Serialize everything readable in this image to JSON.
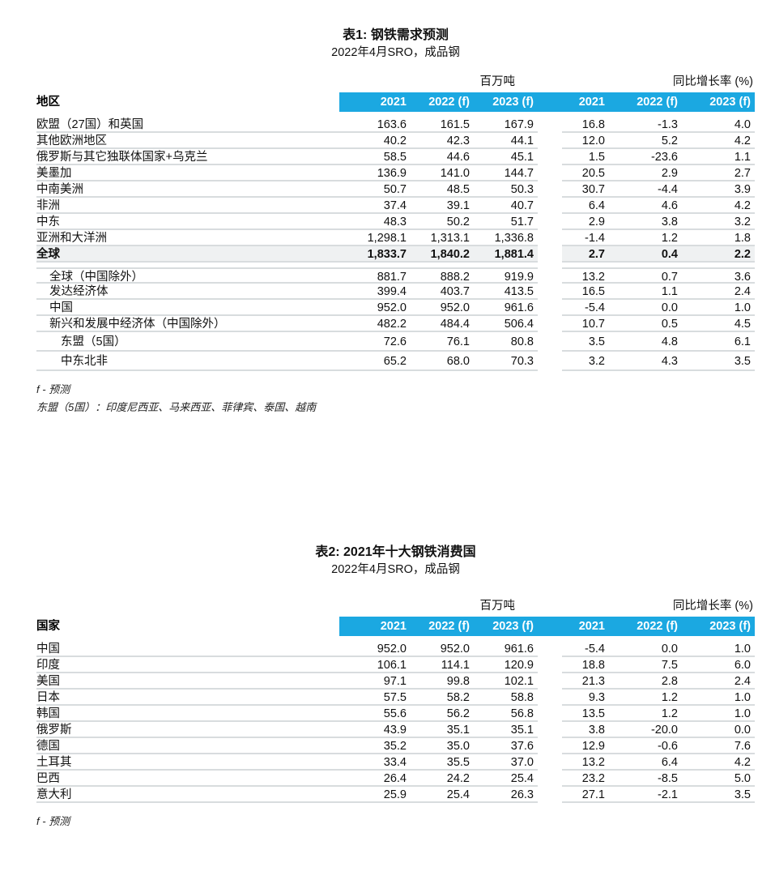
{
  "colors": {
    "header_blue": "#1BA8E1",
    "separator": "#D8DCDE",
    "row_shade": "#EFF1F2",
    "text": "#111111"
  },
  "tables": [
    {
      "title": "表1: 钢铁需求预测",
      "subtitle": "2022年4月SRO，成品钢",
      "unit_group_label": "百万吨",
      "growth_group_label": "同比增长率 (%)",
      "row_header": "地区",
      "columns": [
        "2021",
        "2022 (f)",
        "2023 (f)",
        "2021",
        "2022 (f)",
        "2023 (f)"
      ],
      "rows": [
        {
          "label": "欧盟（27国）和英国",
          "indent": 0,
          "values": [
            "163.6",
            "161.5",
            "167.9",
            "16.8",
            "-1.3",
            "4.0"
          ]
        },
        {
          "label": "其他欧洲地区",
          "indent": 0,
          "values": [
            "40.2",
            "42.3",
            "44.1",
            "12.0",
            "5.2",
            "4.2"
          ]
        },
        {
          "label": "俄罗斯与其它独联体国家+乌克兰",
          "indent": 0,
          "values": [
            "58.5",
            "44.6",
            "45.1",
            "1.5",
            "-23.6",
            "1.1"
          ]
        },
        {
          "label": "美墨加",
          "indent": 0,
          "values": [
            "136.9",
            "141.0",
            "144.7",
            "20.5",
            "2.9",
            "2.7"
          ]
        },
        {
          "label": "中南美洲",
          "indent": 0,
          "values": [
            "50.7",
            "48.5",
            "50.3",
            "30.7",
            "-4.4",
            "3.9"
          ]
        },
        {
          "label": "非洲",
          "indent": 0,
          "values": [
            "37.4",
            "39.1",
            "40.7",
            "6.4",
            "4.6",
            "4.2"
          ]
        },
        {
          "label": "中东",
          "indent": 0,
          "values": [
            "48.3",
            "50.2",
            "51.7",
            "2.9",
            "3.8",
            "3.2"
          ]
        },
        {
          "label": "亚洲和大洋洲",
          "indent": 0,
          "values": [
            "1,298.1",
            "1,313.1",
            "1,336.8",
            "-1.4",
            "1.2",
            "1.8"
          ]
        },
        {
          "label": "全球",
          "indent": 0,
          "bold": true,
          "shaded": true,
          "values": [
            "1,833.7",
            "1,840.2",
            "1,881.4",
            "2.7",
            "0.4",
            "2.2"
          ]
        },
        {
          "label": "全球（中国除外）",
          "indent": 1,
          "block_start": true,
          "values": [
            "881.7",
            "888.2",
            "919.9",
            "13.2",
            "0.7",
            "3.6"
          ]
        },
        {
          "label": "发达经济体",
          "indent": 1,
          "values": [
            "399.4",
            "403.7",
            "413.5",
            "16.5",
            "1.1",
            "2.4"
          ]
        },
        {
          "label": "中国",
          "indent": 1,
          "values": [
            "952.0",
            "952.0",
            "961.6",
            "-5.4",
            "0.0",
            "1.0"
          ]
        },
        {
          "label": "新兴和发展中经济体（中国除外）",
          "indent": 1,
          "values": [
            "482.2",
            "484.4",
            "506.4",
            "10.7",
            "0.5",
            "4.5"
          ]
        },
        {
          "label": "东盟（5国）",
          "indent": 2,
          "tall": true,
          "values": [
            "72.6",
            "76.1",
            "80.8",
            "3.5",
            "4.8",
            "6.1"
          ]
        },
        {
          "label": "中东北非",
          "indent": 2,
          "tall": true,
          "values": [
            "65.2",
            "68.0",
            "70.3",
            "3.2",
            "4.3",
            "3.5"
          ]
        }
      ],
      "footnotes": [
        "f - 预测",
        "东盟（5国）：印度尼西亚、马来西亚、菲律宾、泰国、越南"
      ]
    },
    {
      "title": "表2: 2021年十大钢铁消费国",
      "subtitle": "2022年4月SRO，成品钢",
      "unit_group_label": "百万吨",
      "growth_group_label": "同比增长率 (%)",
      "row_header": "国家",
      "columns": [
        "2021",
        "2022 (f)",
        "2023 (f)",
        "2021",
        "2022 (f)",
        "2023 (f)"
      ],
      "rows": [
        {
          "label": "中国",
          "indent": 0,
          "values": [
            "952.0",
            "952.0",
            "961.6",
            "-5.4",
            "0.0",
            "1.0"
          ]
        },
        {
          "label": "印度",
          "indent": 0,
          "values": [
            "106.1",
            "114.1",
            "120.9",
            "18.8",
            "7.5",
            "6.0"
          ]
        },
        {
          "label": "美国",
          "indent": 0,
          "values": [
            "97.1",
            "99.8",
            "102.1",
            "21.3",
            "2.8",
            "2.4"
          ]
        },
        {
          "label": "日本",
          "indent": 0,
          "values": [
            "57.5",
            "58.2",
            "58.8",
            "9.3",
            "1.2",
            "1.0"
          ]
        },
        {
          "label": "韩国",
          "indent": 0,
          "values": [
            "55.6",
            "56.2",
            "56.8",
            "13.5",
            "1.2",
            "1.0"
          ]
        },
        {
          "label": "俄罗斯",
          "indent": 0,
          "values": [
            "43.9",
            "35.1",
            "35.1",
            "3.8",
            "-20.0",
            "0.0"
          ]
        },
        {
          "label": "德国",
          "indent": 0,
          "values": [
            "35.2",
            "35.0",
            "37.6",
            "12.9",
            "-0.6",
            "7.6"
          ]
        },
        {
          "label": "土耳其",
          "indent": 0,
          "values": [
            "33.4",
            "35.5",
            "37.0",
            "13.2",
            "6.4",
            "4.2"
          ]
        },
        {
          "label": "巴西",
          "indent": 0,
          "values": [
            "26.4",
            "24.2",
            "25.4",
            "23.2",
            "-8.5",
            "5.0"
          ]
        },
        {
          "label": "意大利",
          "indent": 0,
          "values": [
            "25.9",
            "25.4",
            "26.3",
            "27.1",
            "-2.1",
            "3.5"
          ]
        }
      ],
      "footnotes": [
        "f - 预测"
      ]
    }
  ]
}
